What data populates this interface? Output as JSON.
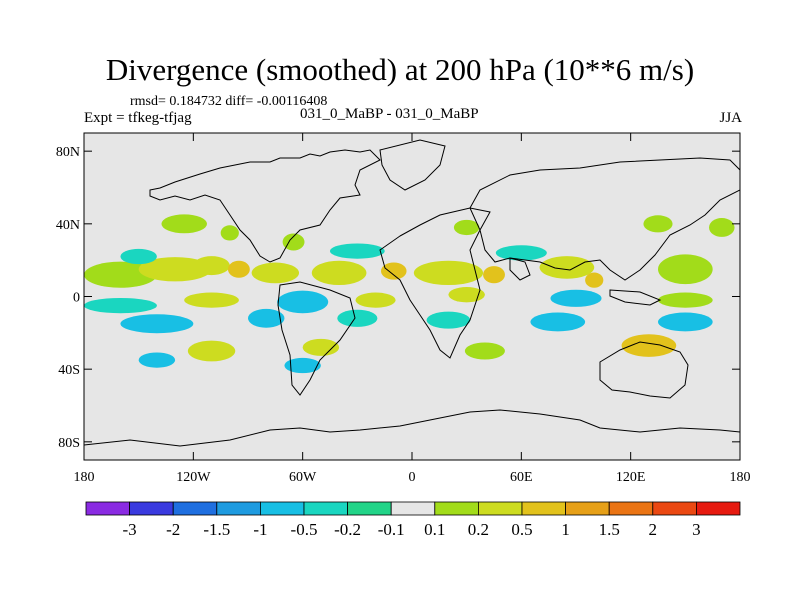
{
  "header": {
    "title": "Divergence (smoothed) at 200 hPa (10**6 m/s)",
    "stats": "rmsd= 0.184732 diff= -0.00116408",
    "expt": "Expt = tfkeg-tfjag",
    "case_info": "031_0_MaBP - 031_0_MaBP",
    "season": "JJA"
  },
  "chart_data": {
    "type": "heatmap",
    "title": "Divergence (smoothed) at 200 hPa (10**6 m/s)",
    "xlabel": "",
    "ylabel": "",
    "xlim": [
      -180,
      180
    ],
    "ylim": [
      -90,
      90
    ],
    "x_ticks": [
      {
        "value": -180,
        "label": "180"
      },
      {
        "value": -120,
        "label": "120W"
      },
      {
        "value": -60,
        "label": "60W"
      },
      {
        "value": 0,
        "label": "0"
      },
      {
        "value": 60,
        "label": "60E"
      },
      {
        "value": 120,
        "label": "120E"
      },
      {
        "value": 180,
        "label": "180"
      }
    ],
    "y_ticks": [
      {
        "value": 80,
        "label": "80N"
      },
      {
        "value": 40,
        "label": "40N"
      },
      {
        "value": 0,
        "label": "0"
      },
      {
        "value": -40,
        "label": "40S"
      },
      {
        "value": -80,
        "label": "80S"
      }
    ],
    "colorbar": {
      "labels": [
        "-3",
        "-2",
        "-1.5",
        "-1",
        "-0.5",
        "-0.2",
        "-0.1",
        "0.1",
        "0.2",
        "0.5",
        "1",
        "1.5",
        "2",
        "3"
      ],
      "colors": [
        "#8a2be2",
        "#3a3adf",
        "#1f6fe0",
        "#1e9be0",
        "#18bfe4",
        "#1ad6c0",
        "#22d488",
        "#e6e6e6",
        "#a2dc1a",
        "#cddc20",
        "#e2c21c",
        "#e6a018",
        "#ea7414",
        "#ea4812",
        "#e61a10"
      ]
    },
    "background_color": "#e6e6e6",
    "contour_patches": [
      {
        "lon": -160,
        "lat": 12,
        "level": 0.2,
        "w": 40,
        "h": 10
      },
      {
        "lon": -130,
        "lat": 15,
        "level": 0.5,
        "w": 40,
        "h": 9
      },
      {
        "lon": -110,
        "lat": 17,
        "level": 0.5,
        "w": 20,
        "h": 6
      },
      {
        "lon": -95,
        "lat": 15,
        "level": 1,
        "w": 12,
        "h": 5
      },
      {
        "lon": -75,
        "lat": 13,
        "level": 0.5,
        "w": 26,
        "h": 7
      },
      {
        "lon": -40,
        "lat": 13,
        "level": 0.5,
        "w": 30,
        "h": 9
      },
      {
        "lon": -10,
        "lat": 14,
        "level": 1,
        "w": 14,
        "h": 5
      },
      {
        "lon": 20,
        "lat": 13,
        "level": 0.5,
        "w": 38,
        "h": 9
      },
      {
        "lon": 45,
        "lat": 12,
        "level": 1,
        "w": 12,
        "h": 5
      },
      {
        "lon": 85,
        "lat": 16,
        "level": 0.5,
        "w": 30,
        "h": 8
      },
      {
        "lon": 100,
        "lat": 9,
        "level": 1,
        "w": 10,
        "h": 4
      },
      {
        "lon": 150,
        "lat": 15,
        "level": 0.2,
        "w": 30,
        "h": 12
      },
      {
        "lon": -125,
        "lat": 40,
        "level": 0.2,
        "w": 25,
        "h": 6
      },
      {
        "lon": -100,
        "lat": 35,
        "level": 0.2,
        "w": 10,
        "h": 4
      },
      {
        "lon": -65,
        "lat": 30,
        "level": 0.2,
        "w": 12,
        "h": 5
      },
      {
        "lon": 30,
        "lat": 38,
        "level": 0.2,
        "w": 14,
        "h": 4
      },
      {
        "lon": 135,
        "lat": 40,
        "level": 0.2,
        "w": 16,
        "h": 5
      },
      {
        "lon": 170,
        "lat": 38,
        "level": 0.2,
        "w": 14,
        "h": 6
      },
      {
        "lon": -150,
        "lat": 22,
        "level": -0.2,
        "w": 20,
        "h": 4
      },
      {
        "lon": -30,
        "lat": 25,
        "level": -0.2,
        "w": 30,
        "h": 4
      },
      {
        "lon": 60,
        "lat": 24,
        "level": -0.2,
        "w": 28,
        "h": 4
      },
      {
        "lon": -160,
        "lat": -5,
        "level": -0.2,
        "w": 40,
        "h": 4
      },
      {
        "lon": -110,
        "lat": -2,
        "level": 0.5,
        "w": 30,
        "h": 4
      },
      {
        "lon": -60,
        "lat": -3,
        "level": -0.5,
        "w": 28,
        "h": 8
      },
      {
        "lon": -20,
        "lat": -2,
        "level": 0.5,
        "w": 22,
        "h": 4
      },
      {
        "lon": 30,
        "lat": 1,
        "level": 0.5,
        "w": 20,
        "h": 4
      },
      {
        "lon": 90,
        "lat": -1,
        "level": -0.5,
        "w": 28,
        "h": 5
      },
      {
        "lon": 150,
        "lat": -2,
        "level": 0.2,
        "w": 30,
        "h": 4
      },
      {
        "lon": -140,
        "lat": -15,
        "level": -0.5,
        "w": 40,
        "h": 6
      },
      {
        "lon": -80,
        "lat": -12,
        "level": -0.5,
        "w": 20,
        "h": 6
      },
      {
        "lon": -30,
        "lat": -12,
        "level": -0.2,
        "w": 22,
        "h": 5
      },
      {
        "lon": 20,
        "lat": -13,
        "level": -0.2,
        "w": 24,
        "h": 5
      },
      {
        "lon": 80,
        "lat": -14,
        "level": -0.5,
        "w": 30,
        "h": 6
      },
      {
        "lon": 150,
        "lat": -14,
        "level": -0.5,
        "w": 30,
        "h": 6
      },
      {
        "lon": -110,
        "lat": -30,
        "level": 0.5,
        "w": 26,
        "h": 7
      },
      {
        "lon": -50,
        "lat": -28,
        "level": 0.5,
        "w": 20,
        "h": 5
      },
      {
        "lon": 40,
        "lat": -30,
        "level": 0.2,
        "w": 22,
        "h": 5
      },
      {
        "lon": 130,
        "lat": -27,
        "level": 1,
        "w": 30,
        "h": 8
      },
      {
        "lon": -140,
        "lat": -35,
        "level": -0.5,
        "w": 20,
        "h": 4
      },
      {
        "lon": -60,
        "lat": -38,
        "level": -0.5,
        "w": 20,
        "h": 4
      }
    ]
  }
}
